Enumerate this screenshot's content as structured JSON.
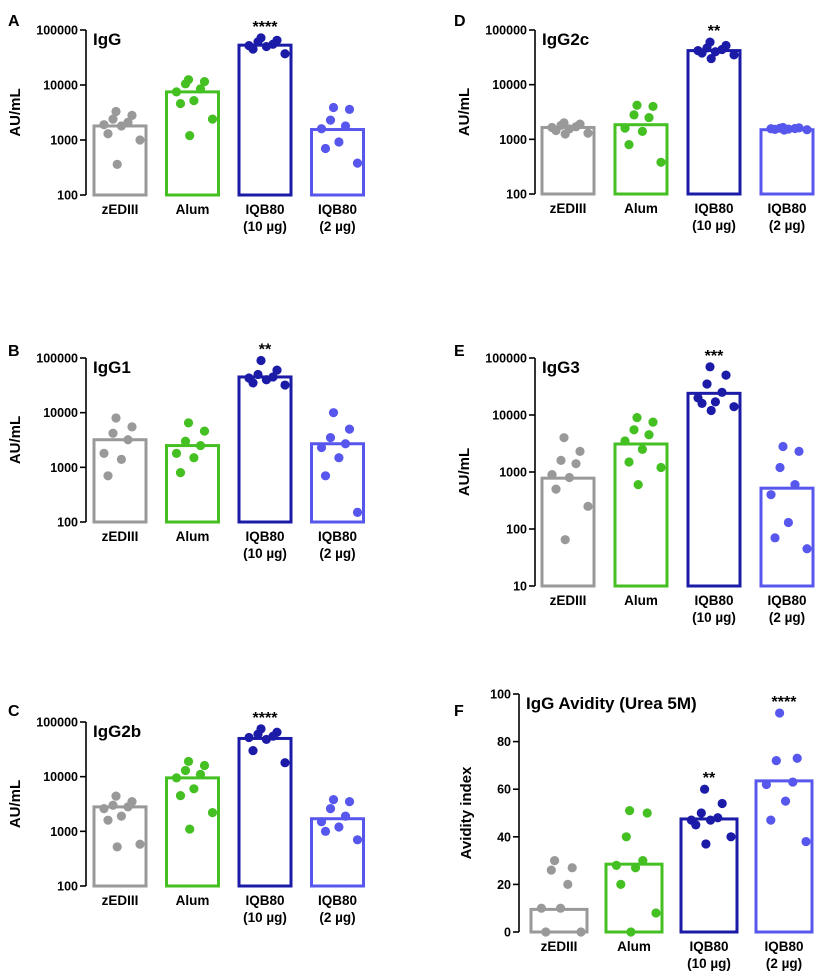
{
  "colors": {
    "zEDIII": "#999999",
    "Alum": "#44c022",
    "IQB80_10": "#1b1ba8",
    "IQB80_2": "#5757ee"
  },
  "groups": [
    "zEDIII",
    "Alum",
    "IQB80_10",
    "IQB80_2"
  ],
  "chart_data": [
    {
      "panel": "A",
      "type": "bar",
      "scale": "log",
      "title": "IgG",
      "ylabel": "AU/mL",
      "ylim": [
        100,
        100000
      ],
      "yticks": [
        100,
        1000,
        10000,
        100000
      ],
      "yticklabels": [
        "100",
        "1000",
        "10000",
        "100000"
      ],
      "categories": [
        "zEDIII",
        "Alum",
        "IQB80",
        "IQB80"
      ],
      "category_sublabels": [
        "",
        "",
        "(10 µg)",
        "(2 µg)"
      ],
      "values": [
        1800,
        7500,
        53000,
        1550
      ],
      "points": [
        [
          3300,
          2800,
          2400,
          2100,
          1900,
          1800,
          1300,
          1000,
          360
        ],
        [
          12500,
          11500,
          10500,
          8500,
          7500,
          5200,
          4600,
          2400,
          1200
        ],
        [
          72000,
          65000,
          61000,
          55000,
          52000,
          50000,
          45000,
          37000
        ],
        [
          3900,
          3600,
          2300,
          1800,
          1600,
          920,
          700,
          380
        ]
      ],
      "significance": [
        "",
        "",
        "****",
        ""
      ]
    },
    {
      "panel": "B",
      "type": "bar",
      "scale": "log",
      "title": "IgG1",
      "ylabel": "AU/mL",
      "ylim": [
        100,
        100000
      ],
      "yticks": [
        100,
        1000,
        10000,
        100000
      ],
      "yticklabels": [
        "100",
        "1000",
        "10000",
        "100000"
      ],
      "categories": [
        "zEDIII",
        "Alum",
        "IQB80",
        "IQB80"
      ],
      "category_sublabels": [
        "",
        "",
        "(10 µg)",
        "(2 µg)"
      ],
      "values": [
        3200,
        2500,
        45000,
        2700
      ],
      "points": [
        [
          8000,
          5500,
          4200,
          3200,
          1800,
          1400,
          700
        ],
        [
          6500,
          4600,
          3000,
          2500,
          1800,
          1500,
          800
        ],
        [
          90000,
          60000,
          50000,
          45000,
          43000,
          40000,
          35000,
          32000
        ],
        [
          10000,
          5000,
          3500,
          2700,
          2300,
          1500,
          700,
          150
        ]
      ],
      "significance": [
        "",
        "",
        "**",
        ""
      ]
    },
    {
      "panel": "C",
      "type": "bar",
      "scale": "log",
      "title": "IgG2b",
      "ylabel": "AU/mL",
      "ylim": [
        100,
        100000
      ],
      "yticks": [
        100,
        1000,
        10000,
        100000
      ],
      "yticklabels": [
        "100",
        "1000",
        "10000",
        "100000"
      ],
      "categories": [
        "zEDIII",
        "Alum",
        "IQB80",
        "IQB80"
      ],
      "category_sublabels": [
        "",
        "",
        "(10 µg)",
        "(2 µg)"
      ],
      "values": [
        2800,
        9500,
        50000,
        1700
      ],
      "points": [
        [
          4400,
          3500,
          3000,
          2800,
          2600,
          1900,
          1600,
          580,
          520
        ],
        [
          19000,
          16000,
          13000,
          11000,
          9500,
          6000,
          4500,
          2200,
          1100
        ],
        [
          75000,
          65000,
          60000,
          55000,
          52000,
          48000,
          30000,
          18000
        ],
        [
          3800,
          3500,
          2600,
          1900,
          1500,
          1200,
          1000,
          700
        ]
      ],
      "significance": [
        "",
        "",
        "****",
        ""
      ]
    },
    {
      "panel": "D",
      "type": "bar",
      "scale": "log",
      "title": "IgG2c",
      "ylabel": "AU/mL",
      "ylim": [
        100,
        100000
      ],
      "yticks": [
        100,
        1000,
        10000,
        100000
      ],
      "yticklabels": [
        "100",
        "1000",
        "10000",
        "100000"
      ],
      "categories": [
        "zEDIII",
        "Alum",
        "IQB80",
        "IQB80"
      ],
      "category_sublabels": [
        "",
        "",
        "(10 µg)",
        "(2 µg)"
      ],
      "values": [
        1650,
        1850,
        42000,
        1500
      ],
      "points": [
        [
          2000,
          1900,
          1800,
          1700,
          1650,
          1550,
          1450,
          1300,
          1250
        ],
        [
          4200,
          4000,
          2800,
          2500,
          1600,
          1400,
          800,
          380
        ],
        [
          60000,
          52000,
          47000,
          44000,
          42000,
          40000,
          38000,
          35000,
          30000
        ],
        [
          1650,
          1620,
          1600,
          1580,
          1560,
          1540,
          1520,
          1500,
          1480
        ]
      ],
      "significance": [
        "",
        "",
        "**",
        ""
      ]
    },
    {
      "panel": "E",
      "type": "bar",
      "scale": "log",
      "title": "IgG3",
      "ylabel": "AU/mL",
      "ylim": [
        10,
        100000
      ],
      "yticks": [
        10,
        100,
        1000,
        10000,
        100000
      ],
      "yticklabels": [
        "10",
        "100",
        "1000",
        "10000",
        "100000"
      ],
      "categories": [
        "zEDIII",
        "Alum",
        "IQB80",
        "IQB80"
      ],
      "category_sublabels": [
        "",
        "",
        "(10 µg)",
        "(2 µg)"
      ],
      "values": [
        780,
        3100,
        24000,
        520
      ],
      "points": [
        [
          4000,
          2300,
          1600,
          1400,
          900,
          800,
          500,
          250,
          65
        ],
        [
          9000,
          7500,
          5500,
          4500,
          3500,
          2500,
          1500,
          1200,
          600
        ],
        [
          70000,
          50000,
          35000,
          25000,
          20000,
          17000,
          16000,
          14000,
          12000
        ],
        [
          2800,
          2300,
          1200,
          600,
          400,
          130,
          70,
          45
        ]
      ],
      "significance": [
        "",
        "",
        "***",
        ""
      ]
    },
    {
      "panel": "F",
      "type": "bar",
      "scale": "linear",
      "title": "IgG Avidity (Urea 5M)",
      "ylabel": "Avidity index",
      "ylim": [
        0,
        100
      ],
      "yticks": [
        0,
        20,
        40,
        60,
        80,
        100
      ],
      "yticklabels": [
        "0",
        "20",
        "40",
        "60",
        "80",
        "100"
      ],
      "categories": [
        "zEDIII",
        "Alum",
        "IQB80",
        "IQB80"
      ],
      "category_sublabels": [
        "",
        "",
        "(10 µg)",
        "(2 µg)"
      ],
      "values": [
        9.5,
        28.5,
        47.5,
        63.5
      ],
      "points": [
        [
          30,
          27,
          26,
          20,
          10,
          10,
          0,
          0
        ],
        [
          51,
          50,
          40,
          30,
          28,
          27,
          20,
          8,
          0
        ],
        [
          60,
          54,
          50,
          48,
          47,
          47,
          45,
          40,
          37
        ],
        [
          92,
          73,
          72,
          63,
          62,
          55,
          47,
          38
        ]
      ],
      "significance": [
        "",
        "",
        "**",
        "****"
      ]
    }
  ]
}
